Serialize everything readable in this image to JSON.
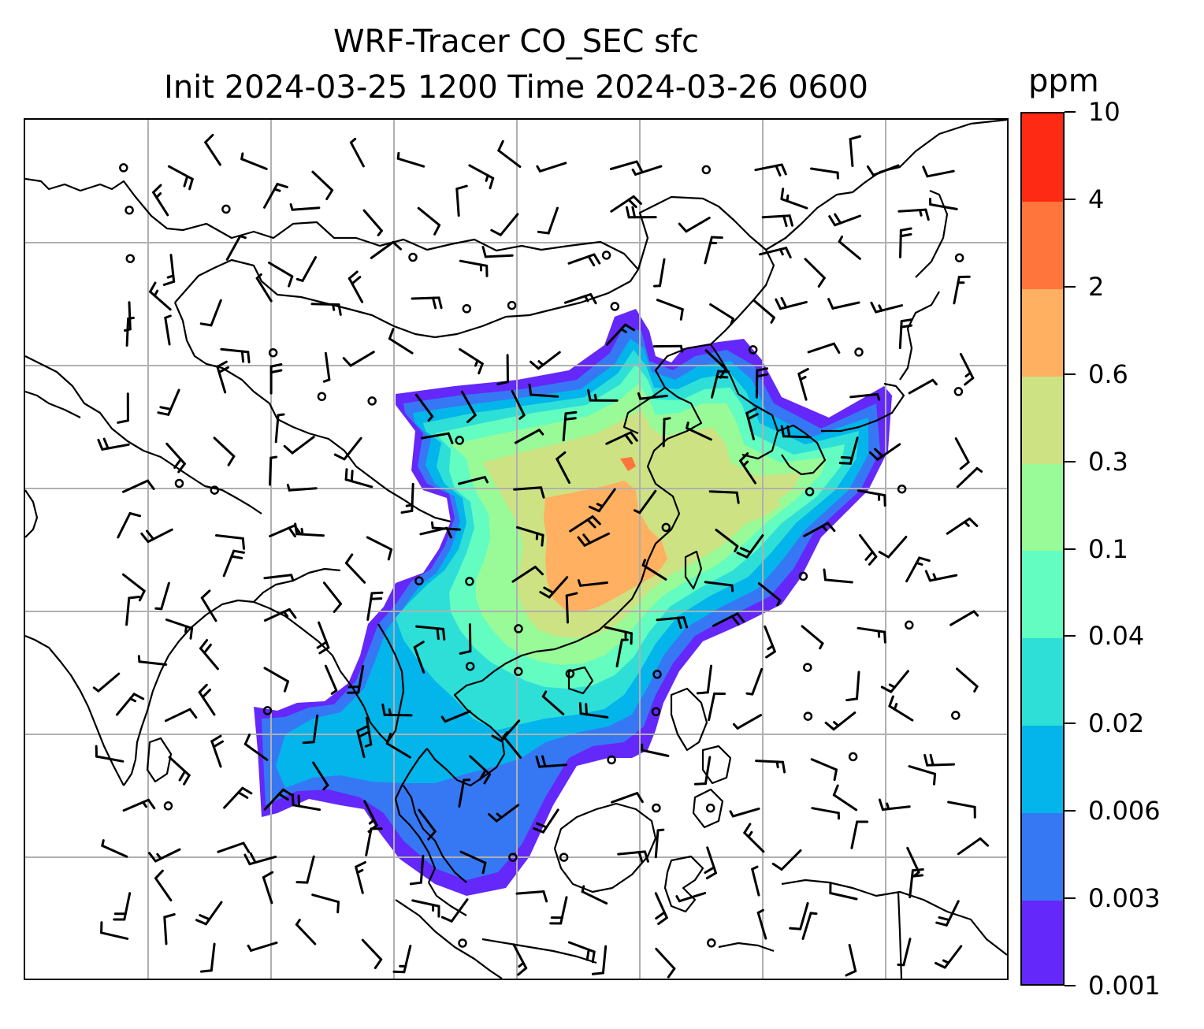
{
  "title": {
    "line1": "WRF-Tracer CO_SEC sfc",
    "line2": "Init 2024-03-25 1200 Time 2024-03-26 0600"
  },
  "colorbar": {
    "unit": "ppm",
    "levels": [
      "0.001",
      "0.003",
      "0.006",
      "0.02",
      "0.04",
      "0.1",
      "0.3",
      "0.6",
      "2",
      "4",
      "10"
    ],
    "colors": [
      "#6428fa",
      "#3678f4",
      "#03b5ea",
      "#2edfd8",
      "#63fcc1",
      "#98fb98",
      "#cde283",
      "#ffb060",
      "#ff753b",
      "#ff2a14"
    ]
  },
  "map": {
    "gridlines": true,
    "gridline_color": "#b0b0b0",
    "coastline_color": "#000000",
    "wind_barbs": true,
    "calm_marker": "circle"
  }
}
